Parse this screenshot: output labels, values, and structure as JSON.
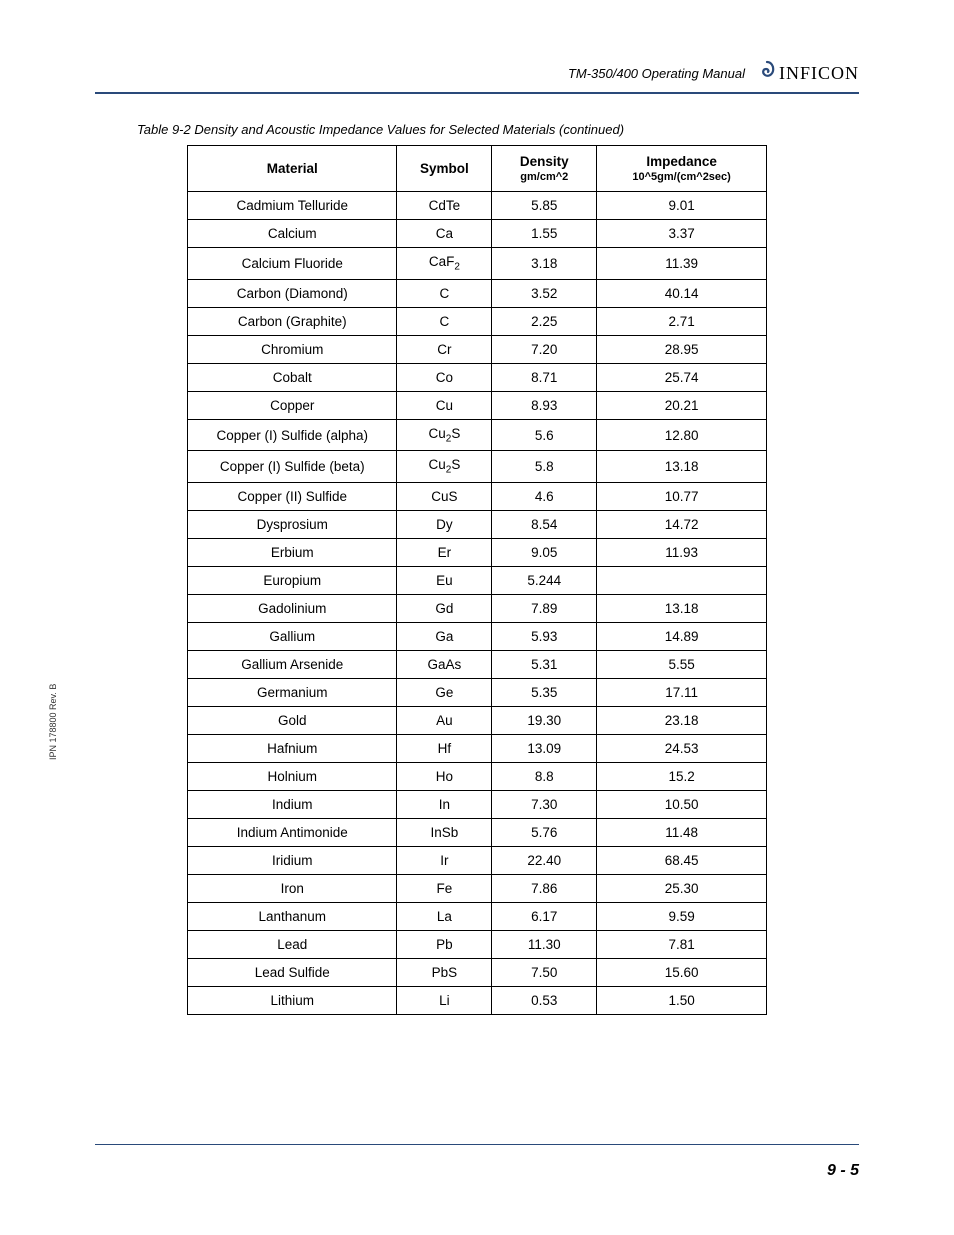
{
  "header": {
    "manual_title": "TM-350/400 Operating Manual",
    "logo_text": "INFICON"
  },
  "table": {
    "caption": "Table 9-2  Density and Acoustic Impedance Values for Selected Materials (continued)",
    "columns": {
      "material": "Material",
      "symbol": "Symbol",
      "density": "Density",
      "density_unit": "gm/cm^2",
      "impedance": "Impedance",
      "impedance_unit": "10^5gm/(cm^2sec)"
    },
    "rows": [
      {
        "material": "Cadmium Telluride",
        "symbol": "CdTe",
        "density": "5.85",
        "impedance": "9.01"
      },
      {
        "material": "Calcium",
        "symbol": "Ca",
        "density": "1.55",
        "impedance": "3.37"
      },
      {
        "material": "Calcium Fluoride",
        "symbol_html": "CaF<sub>2</sub>",
        "density": "3.18",
        "impedance": "11.39"
      },
      {
        "material": "Carbon (Diamond)",
        "symbol": "C",
        "density": "3.52",
        "impedance": "40.14"
      },
      {
        "material": "Carbon (Graphite)",
        "symbol": "C",
        "density": "2.25",
        "impedance": "2.71"
      },
      {
        "material": "Chromium",
        "symbol": "Cr",
        "density": "7.20",
        "impedance": "28.95"
      },
      {
        "material": "Cobalt",
        "symbol": "Co",
        "density": "8.71",
        "impedance": "25.74"
      },
      {
        "material": "Copper",
        "symbol": "Cu",
        "density": "8.93",
        "impedance": "20.21"
      },
      {
        "material": "Copper (I) Sulfide (alpha)",
        "symbol_html": "Cu<sub>2</sub>S",
        "density": "5.6",
        "impedance": "12.80"
      },
      {
        "material": "Copper (I) Sulfide (beta)",
        "symbol_html": "Cu<sub>2</sub>S",
        "density": "5.8",
        "impedance": "13.18"
      },
      {
        "material": "Copper (II) Sulfide",
        "symbol": "CuS",
        "density": "4.6",
        "impedance": "10.77"
      },
      {
        "material": "Dysprosium",
        "symbol": "Dy",
        "density": "8.54",
        "impedance": "14.72"
      },
      {
        "material": "Erbium",
        "symbol": "Er",
        "density": "9.05",
        "impedance": "11.93"
      },
      {
        "material": "Europium",
        "symbol": "Eu",
        "density": "5.244",
        "impedance": ""
      },
      {
        "material": "Gadolinium",
        "symbol": "Gd",
        "density": "7.89",
        "impedance": "13.18"
      },
      {
        "material": "Gallium",
        "symbol": "Ga",
        "density": "5.93",
        "impedance": "14.89"
      },
      {
        "material": "Gallium Arsenide",
        "symbol": "GaAs",
        "density": "5.31",
        "impedance": "5.55"
      },
      {
        "material": "Germanium",
        "symbol": "Ge",
        "density": "5.35",
        "impedance": "17.11"
      },
      {
        "material": "Gold",
        "symbol": "Au",
        "density": "19.30",
        "impedance": "23.18"
      },
      {
        "material": "Hafnium",
        "symbol": "Hf",
        "density": "13.09",
        "impedance": "24.53"
      },
      {
        "material": "Holnium",
        "symbol": "Ho",
        "density": "8.8",
        "impedance": "15.2"
      },
      {
        "material": "Indium",
        "symbol": "In",
        "density": "7.30",
        "impedance": "10.50"
      },
      {
        "material": "Indium Antimonide",
        "symbol": "InSb",
        "density": "5.76",
        "impedance": "11.48"
      },
      {
        "material": "Iridium",
        "symbol": "Ir",
        "density": "22.40",
        "impedance": "68.45"
      },
      {
        "material": "Iron",
        "symbol": "Fe",
        "density": "7.86",
        "impedance": "25.30"
      },
      {
        "material": "Lanthanum",
        "symbol": "La",
        "density": "6.17",
        "impedance": "9.59"
      },
      {
        "material": "Lead",
        "symbol": "Pb",
        "density": "11.30",
        "impedance": "7.81"
      },
      {
        "material": "Lead Sulfide",
        "symbol": "PbS",
        "density": "7.50",
        "impedance": "15.60"
      },
      {
        "material": "Lithium",
        "symbol": "Li",
        "density": "0.53",
        "impedance": "1.50"
      }
    ]
  },
  "side_note": "IPN 178800 Rev. B",
  "page_number": "9 - 5"
}
